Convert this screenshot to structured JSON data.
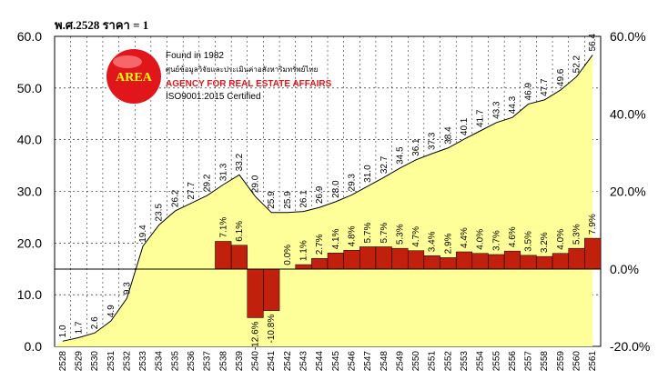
{
  "page_title": "พ.ศ.2528 ราคา = 1",
  "logo": {
    "circle_text": "AREA",
    "founded": "Found in 1982",
    "thai_name": "ศูนย์ข้อมูลวิจัยและประเมินค่าอสังหาริมทรัพย์ไทย",
    "agency_name": "AGENCY FOR REAL ESTATE AFFAIRS",
    "certification": "ISO9001:2015 Certified",
    "colors": {
      "circle": "#e0161b",
      "circle_text": "#ffff00",
      "agency_name": "#e0161b"
    }
  },
  "chart_data": {
    "type": "area",
    "x": [
      "2528",
      "2529",
      "2530",
      "2531",
      "2532",
      "2533",
      "2534",
      "2535",
      "2536",
      "2537",
      "2538",
      "2539",
      "2540",
      "2541",
      "2542",
      "2543",
      "2544",
      "2545",
      "2546",
      "2547",
      "2548",
      "2549",
      "2550",
      "2551",
      "2552",
      "2553",
      "2554",
      "2555",
      "2556",
      "2557",
      "2558",
      "2559",
      "2560",
      "2561"
    ],
    "area_series": {
      "values": [
        1.0,
        1.7,
        2.6,
        4.9,
        9.3,
        19.4,
        23.5,
        26.2,
        27.7,
        29.2,
        31.3,
        33.2,
        29.0,
        25.9,
        25.9,
        26.1,
        26.9,
        28.0,
        29.3,
        31.0,
        32.7,
        34.5,
        36.1,
        37.3,
        38.4,
        40.1,
        41.7,
        43.3,
        44.3,
        46.9,
        47.7,
        49.6,
        52.2,
        56.4
      ],
      "labels": [
        "1.0",
        "1.7",
        "2.6",
        "4.9",
        "9.3",
        "19.4",
        "23.5",
        "26.2",
        "27.7",
        "29.2",
        "31.3",
        "33.2",
        "29.0",
        "25.9",
        "25.9",
        "26.1",
        "26.9",
        "28.0",
        "29.3",
        "31.0",
        "32.7",
        "34.5",
        "36.1",
        "37.3",
        "38.4",
        "40.1",
        "41.7",
        "43.3",
        "44.3",
        "46.9",
        "47.7",
        "49.6",
        "52.2",
        "56.4"
      ],
      "axis": "left",
      "color": "#ffff99",
      "line_color": "#000000"
    },
    "bar_series": {
      "x": [
        "2538",
        "2539",
        "2540",
        "2541",
        "2542",
        "2543",
        "2544",
        "2545",
        "2546",
        "2547",
        "2548",
        "2549",
        "2550",
        "2551",
        "2552",
        "2553",
        "2554",
        "2555",
        "2556",
        "2557",
        "2558",
        "2559",
        "2560",
        "2561"
      ],
      "values": [
        7.1,
        6.1,
        -12.6,
        -10.8,
        0.0,
        1.1,
        2.7,
        4.1,
        4.8,
        5.7,
        5.7,
        5.3,
        4.7,
        3.4,
        2.9,
        4.4,
        4.0,
        3.7,
        4.6,
        3.5,
        3.2,
        4.0,
        5.3,
        7.9
      ],
      "labels": [
        "7.1%",
        "6.1%",
        "-12.6%",
        "-10.8%",
        "0.0%",
        "1.1%",
        "2.7%",
        "4.1%",
        "4.8%",
        "5.7%",
        "5.7%",
        "5.3%",
        "4.7%",
        "3.4%",
        "2.9%",
        "4.4%",
        "4.0%",
        "3.7%",
        "4.6%",
        "3.5%",
        "3.2%",
        "4.0%",
        "5.3%",
        "7.9%"
      ],
      "axis": "right",
      "color": "#c0200c"
    },
    "left_axis": {
      "ylim": [
        0,
        60
      ],
      "ticks": [
        "0.0",
        "10.0",
        "20.0",
        "30.0",
        "40.0",
        "50.0",
        "60.0"
      ]
    },
    "right_axis": {
      "ylim": [
        -20,
        60
      ],
      "ticks": [
        "-20.0%",
        "0.0%",
        "20.0%",
        "40.0%",
        "60.0%"
      ]
    },
    "grid": true,
    "plot_background": "#ffffff"
  }
}
